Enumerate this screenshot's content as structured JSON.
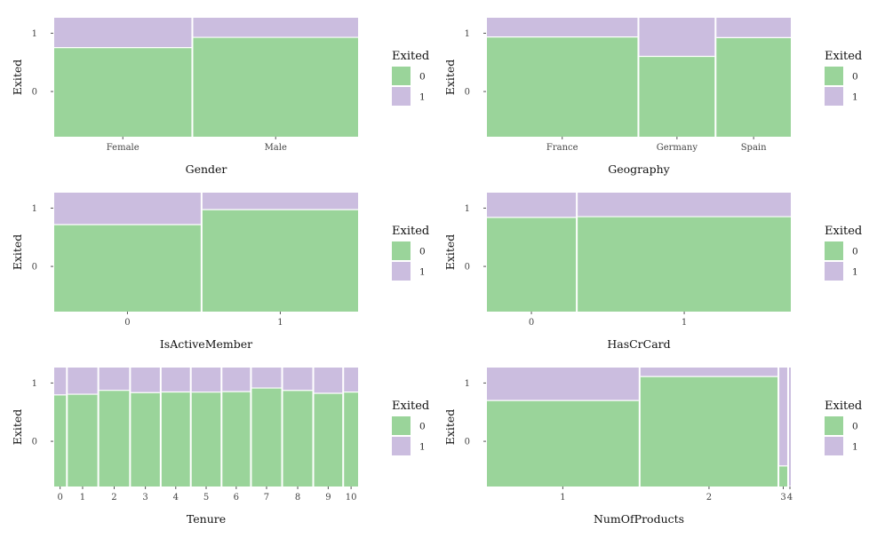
{
  "chart_data": [
    {
      "type": "mosaic",
      "xlabel": "Gender",
      "ylabel": "Exited",
      "y_tick_labels": [
        "0",
        "1"
      ],
      "categories": [
        {
          "label": "Female",
          "share": 0.4543,
          "exited_rate": 0.2507
        },
        {
          "label": "Male",
          "share": 0.5457,
          "exited_rate": 0.1646
        }
      ],
      "legend": {
        "title": "Exited",
        "entries": [
          "0",
          "1"
        ]
      }
    },
    {
      "type": "mosaic",
      "xlabel": "Geography",
      "ylabel": "Exited",
      "y_tick_labels": [
        "0",
        "1"
      ],
      "categories": [
        {
          "label": "France",
          "share": 0.5014,
          "exited_rate": 0.1615
        },
        {
          "label": "Germany",
          "share": 0.2509,
          "exited_rate": 0.3244
        },
        {
          "label": "Spain",
          "share": 0.2477,
          "exited_rate": 0.1667
        }
      ],
      "legend": {
        "title": "Exited",
        "entries": [
          "0",
          "1"
        ]
      }
    },
    {
      "type": "mosaic",
      "xlabel": "IsActiveMember",
      "ylabel": "Exited",
      "y_tick_labels": [
        "0",
        "1"
      ],
      "categories": [
        {
          "label": "0",
          "share": 0.4849,
          "exited_rate": 0.2685
        },
        {
          "label": "1",
          "share": 0.5151,
          "exited_rate": 0.1427
        }
      ],
      "legend": {
        "title": "Exited",
        "entries": [
          "0",
          "1"
        ]
      }
    },
    {
      "type": "mosaic",
      "xlabel": "HasCrCard",
      "ylabel": "Exited",
      "y_tick_labels": [
        "0",
        "1"
      ],
      "categories": [
        {
          "label": "0",
          "share": 0.2945,
          "exited_rate": 0.2081
        },
        {
          "label": "1",
          "share": 0.7055,
          "exited_rate": 0.2018
        }
      ],
      "legend": {
        "title": "Exited",
        "entries": [
          "0",
          "1"
        ]
      }
    },
    {
      "type": "mosaic",
      "xlabel": "Tenure",
      "ylabel": "Exited",
      "y_tick_labels": [
        "0",
        "1"
      ],
      "categories": [
        {
          "label": "0",
          "share": 0.0413,
          "exited_rate": 0.23
        },
        {
          "label": "1",
          "share": 0.1035,
          "exited_rate": 0.2242
        },
        {
          "label": "2",
          "share": 0.1048,
          "exited_rate": 0.1918
        },
        {
          "label": "3",
          "share": 0.1009,
          "exited_rate": 0.2111
        },
        {
          "label": "4",
          "share": 0.0989,
          "exited_rate": 0.2053
        },
        {
          "label": "5",
          "share": 0.1012,
          "exited_rate": 0.2065
        },
        {
          "label": "6",
          "share": 0.0967,
          "exited_rate": 0.2027
        },
        {
          "label": "7",
          "share": 0.1028,
          "exited_rate": 0.1722
        },
        {
          "label": "8",
          "share": 0.1025,
          "exited_rate": 0.1922
        },
        {
          "label": "9",
          "share": 0.0984,
          "exited_rate": 0.2165
        },
        {
          "label": "10",
          "share": 0.049,
          "exited_rate": 0.2061
        }
      ],
      "legend": {
        "title": "Exited",
        "entries": [
          "0",
          "1"
        ]
      }
    },
    {
      "type": "mosaic",
      "xlabel": "NumOfProducts",
      "ylabel": "Exited",
      "y_tick_labels": [
        "0",
        "1"
      ],
      "categories": [
        {
          "label": "1",
          "share": 0.5084,
          "exited_rate": 0.2771
        },
        {
          "label": "2",
          "share": 0.459,
          "exited_rate": 0.0758
        },
        {
          "label": "3",
          "share": 0.0266,
          "exited_rate": 0.8271
        },
        {
          "label": "4",
          "share": 0.006,
          "exited_rate": 1.0
        }
      ],
      "legend": {
        "title": "Exited",
        "entries": [
          "0",
          "1"
        ]
      }
    }
  ],
  "colors": {
    "exited_0": "#9ad49a",
    "exited_1": "#cbbddf",
    "tick": "#555555",
    "divider": "#ffffff"
  }
}
